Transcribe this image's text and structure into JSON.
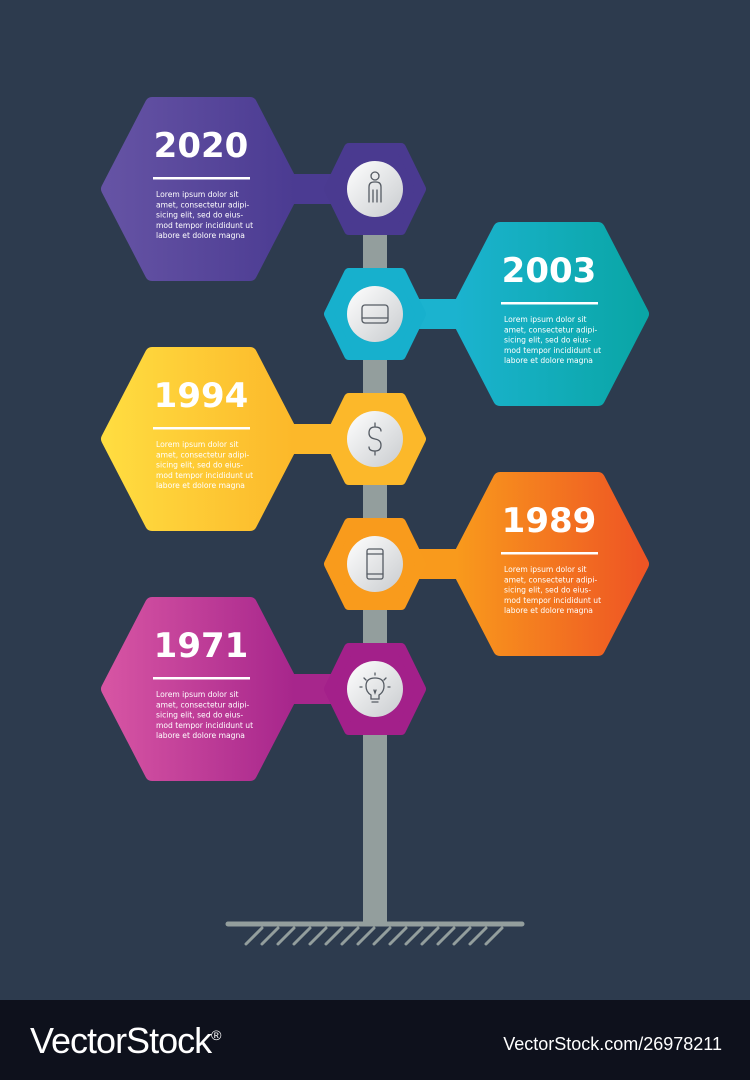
{
  "items": [
    {
      "year": "2020",
      "side": "left",
      "icon": "person-icon",
      "colors": [
        "#6553a4",
        "#4b3b92"
      ],
      "node": "#4a3a90",
      "text": [
        "Lorem ipsum dolor sit",
        "amet, consectetur adipi-",
        "sicing elit, sed do eius-",
        "mod tempor incididunt ut",
        "labore et dolore magna"
      ]
    },
    {
      "year": "2003",
      "side": "right",
      "icon": "tablet-icon",
      "colors": [
        "#1bb3cf",
        "#0aa6a6"
      ],
      "node": "#17b0cd",
      "text": [
        "Lorem ipsum dolor sit",
        "amet, consectetur adipi-",
        "sicing elit, sed do eius-",
        "mod tempor incididunt ut",
        "labore et dolore magna"
      ]
    },
    {
      "year": "1994",
      "side": "left",
      "icon": "dollar-icon",
      "colors": [
        "#ffdc40",
        "#fcb82a"
      ],
      "node": "#fcb82a",
      "text": [
        "Lorem ipsum dolor sit",
        "amet, consectetur adipi-",
        "sicing elit, sed do eius-",
        "mod tempor incididunt ut",
        "labore et dolore magna"
      ]
    },
    {
      "year": "1989",
      "side": "right",
      "icon": "smartphone-icon",
      "colors": [
        "#f99a1c",
        "#ee5524"
      ],
      "node": "#f99b1c",
      "text": [
        "Lorem ipsum dolor sit",
        "amet, consectetur adipi-",
        "sicing elit, sed do eius-",
        "mod tempor incididunt ut",
        "labore et dolore magna"
      ]
    },
    {
      "year": "1971",
      "side": "left",
      "icon": "lightbulb-icon",
      "colors": [
        "#d654a3",
        "#a7268c"
      ],
      "node": "#a3208a",
      "text": [
        "Lorem ipsum dolor sit",
        "amet, consectetur adipi-",
        "sicing elit, sed do eius-",
        "mod tempor incididunt ut",
        "labore et dolore magna"
      ]
    }
  ],
  "colors": {
    "background": "#2d3b4e",
    "pole": "#939e9d",
    "footer": "#0e111c"
  },
  "footer": {
    "brand": "VectorStock",
    "registered": "®",
    "image_id": "VectorStock.com/26978211"
  }
}
